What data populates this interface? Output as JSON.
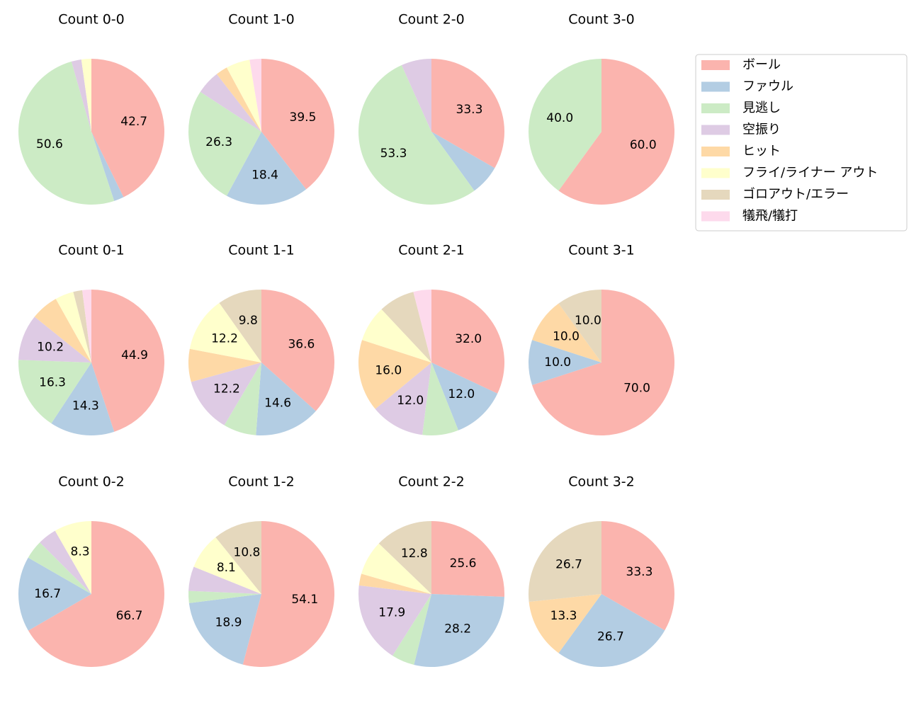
{
  "chart_data": {
    "type": "pie",
    "categories": [
      "ボール",
      "ファウル",
      "見逃し",
      "空振り",
      "ヒット",
      "フライ/ライナー アウト",
      "ゴロアウト/エラー",
      "犠飛/犠打"
    ],
    "colors": [
      "#fbb4ae",
      "#b3cde3",
      "#ccebc5",
      "#decbe4",
      "#fed9a6",
      "#ffffcc",
      "#e5d8bd",
      "#fddaec"
    ],
    "legend": "upper right",
    "charts": [
      {
        "title": "Count 0-0",
        "values": [
          42.7,
          2.2,
          50.6,
          2.2,
          null,
          2.2,
          null,
          null
        ],
        "value_labels": [
          "42.7",
          null,
          "50.6",
          null,
          null,
          null,
          null,
          null
        ]
      },
      {
        "title": "Count 1-0",
        "values": [
          39.5,
          18.4,
          26.3,
          5.3,
          2.6,
          5.3,
          null,
          2.6
        ],
        "value_labels": [
          "39.5",
          "18.4",
          "26.3",
          null,
          null,
          null,
          null,
          null
        ]
      },
      {
        "title": "Count 2-0",
        "values": [
          33.3,
          6.7,
          53.3,
          6.7,
          null,
          null,
          null,
          null
        ],
        "value_labels": [
          "33.3",
          null,
          "53.3",
          null,
          null,
          null,
          null,
          null
        ]
      },
      {
        "title": "Count 3-0",
        "values": [
          60,
          null,
          40,
          null,
          null,
          null,
          null,
          null
        ],
        "value_labels": [
          "60.0",
          null,
          "40.0",
          null,
          null,
          null,
          null,
          null
        ]
      },
      {
        "title": "Count 0-1",
        "values": [
          44.9,
          14.3,
          16.3,
          10.2,
          6.1,
          4.1,
          2.0,
          2.0
        ],
        "value_labels": [
          "44.9",
          "14.3",
          "16.3",
          "10.2",
          null,
          null,
          null,
          null
        ]
      },
      {
        "title": "Count 1-1",
        "values": [
          36.6,
          14.6,
          7.3,
          12.2,
          7.3,
          12.2,
          9.8,
          null
        ],
        "value_labels": [
          "36.6",
          "14.6",
          null,
          "12.2",
          null,
          "12.2",
          "9.8",
          null
        ]
      },
      {
        "title": "Count 2-1",
        "values": [
          32,
          12,
          8,
          12,
          16,
          8,
          8,
          4
        ],
        "value_labels": [
          "32.0",
          "12.0",
          null,
          "12.0",
          "16.0",
          null,
          null,
          null
        ]
      },
      {
        "title": "Count 3-1",
        "values": [
          70,
          10,
          null,
          null,
          10,
          null,
          10,
          null
        ],
        "value_labels": [
          "70.0",
          "10.0",
          null,
          null,
          "10.0",
          null,
          "10.0",
          null
        ]
      },
      {
        "title": "Count 0-2",
        "values": [
          66.7,
          16.7,
          4.2,
          4.2,
          null,
          8.3,
          null,
          null
        ],
        "value_labels": [
          "66.7",
          "16.7",
          null,
          null,
          null,
          "8.3",
          null,
          null
        ]
      },
      {
        "title": "Count 1-2",
        "values": [
          54.1,
          18.9,
          2.7,
          5.4,
          null,
          8.1,
          10.8,
          null
        ],
        "value_labels": [
          "54.1",
          "18.9",
          null,
          null,
          null,
          "8.1",
          "10.8",
          null
        ]
      },
      {
        "title": "Count 2-2",
        "values": [
          25.6,
          28.2,
          5.1,
          17.9,
          2.6,
          7.7,
          12.8,
          null
        ],
        "value_labels": [
          "25.6",
          "28.2",
          null,
          "17.9",
          null,
          null,
          "12.8",
          null
        ]
      },
      {
        "title": "Count 3-2",
        "values": [
          33.3,
          26.7,
          null,
          null,
          13.3,
          null,
          26.7,
          null
        ],
        "value_labels": [
          "33.3",
          "26.7",
          null,
          null,
          "13.3",
          null,
          "26.7",
          null
        ]
      }
    ]
  }
}
